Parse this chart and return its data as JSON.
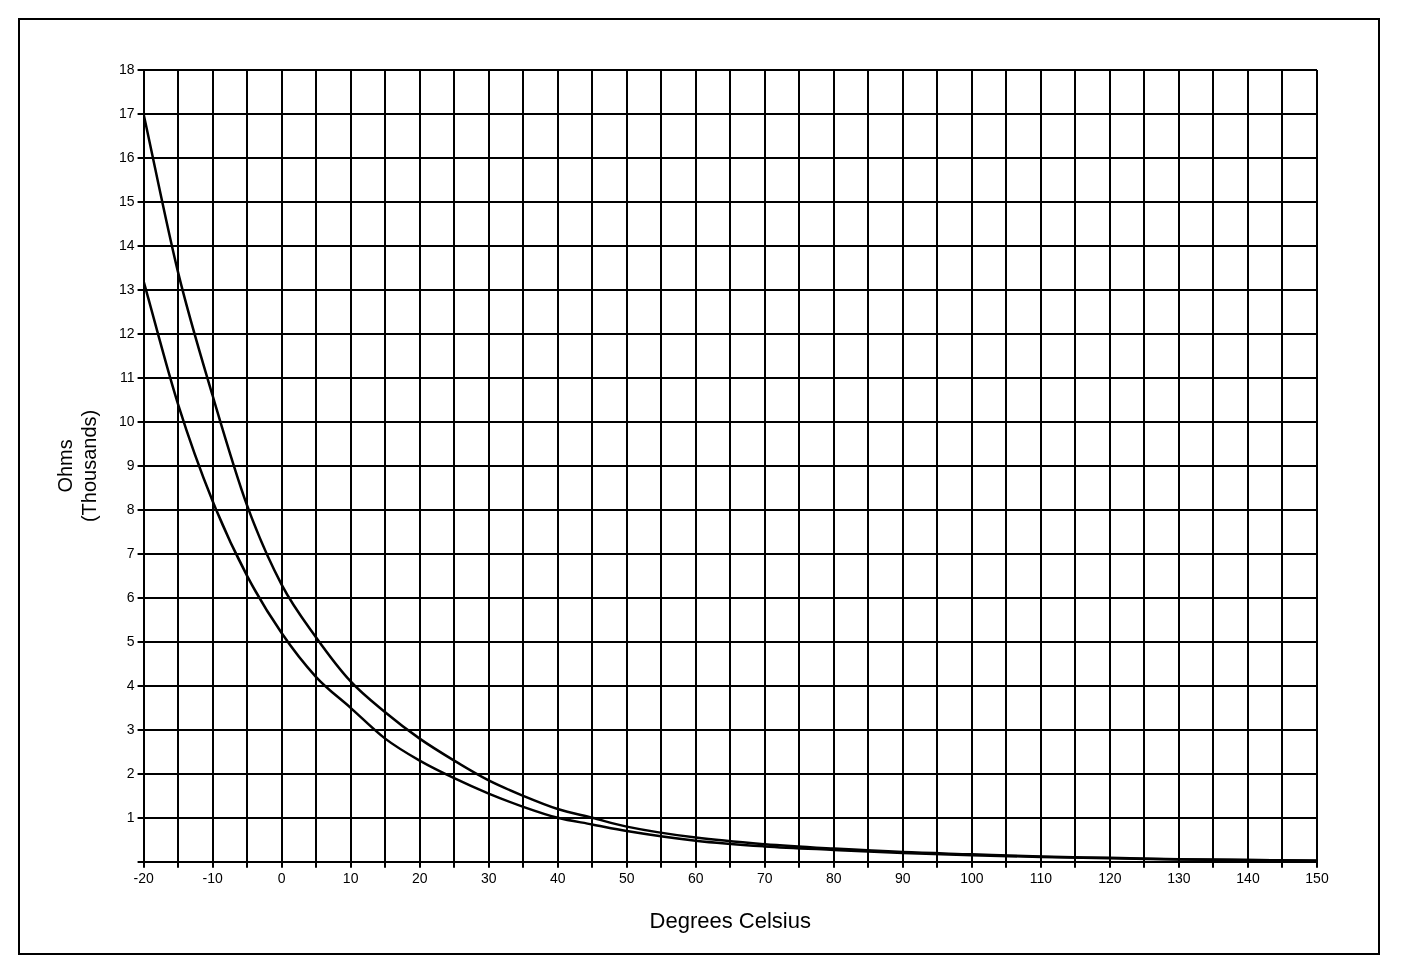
{
  "chart_data": {
    "type": "line",
    "xlabel": "Degrees Celsius",
    "ylabel": "Ohms\n(Thousands)",
    "x": [
      -20,
      -15,
      -10,
      -5,
      0,
      5,
      10,
      15,
      20,
      25,
      30,
      35,
      40,
      45,
      50,
      60,
      70,
      80,
      90,
      100,
      110,
      120,
      130,
      140,
      150
    ],
    "series": [
      {
        "color": "#000000",
        "values": [
          17.0,
          13.4,
          10.6,
          8.1,
          6.3,
          5.1,
          4.1,
          3.4,
          2.8,
          2.3,
          1.85,
          1.5,
          1.2,
          1.0,
          0.8,
          0.55,
          0.4,
          0.3,
          0.22,
          0.17,
          0.12,
          0.09,
          0.06,
          0.04,
          0.03
        ]
      },
      {
        "color": "#000000",
        "values": [
          13.2,
          10.4,
          8.2,
          6.5,
          5.2,
          4.2,
          3.5,
          2.8,
          2.3,
          1.9,
          1.55,
          1.25,
          1.0,
          0.85,
          0.7,
          0.48,
          0.35,
          0.27,
          0.2,
          0.15,
          0.11,
          0.08,
          0.05,
          0.04,
          0.02
        ]
      }
    ],
    "xlim": [
      -20,
      150
    ],
    "xticks": [
      -20,
      {
        "value": -15,
        "label": null
      },
      -10,
      {
        "value": -5,
        "label": null
      },
      0,
      {
        "value": 5,
        "label": null
      },
      10,
      {
        "value": 15,
        "label": null
      },
      20,
      {
        "value": 25,
        "label": null
      },
      30,
      {
        "value": 35,
        "label": null
      },
      40,
      {
        "value": 45,
        "label": null
      },
      50,
      {
        "value": 55,
        "label": null
      },
      60,
      {
        "value": 65,
        "label": null
      },
      70,
      {
        "value": 75,
        "label": null
      },
      80,
      {
        "value": 85,
        "label": null
      },
      90,
      {
        "value": 95,
        "label": null
      },
      100,
      {
        "value": 105,
        "label": null
      },
      110,
      {
        "value": 115,
        "label": null
      },
      120,
      {
        "value": 125,
        "label": null
      },
      130,
      {
        "value": 135,
        "label": null
      },
      140,
      {
        "value": 145,
        "label": null
      },
      150
    ],
    "ylim": [
      0,
      18
    ],
    "yticks": [
      {
        "value": 0,
        "label": null
      },
      1,
      2,
      3,
      4,
      5,
      6,
      7,
      8,
      9,
      10,
      11,
      12,
      13,
      14,
      15,
      16,
      17,
      18
    ],
    "grid": true,
    "marker": "none",
    "line_style": "solid"
  }
}
